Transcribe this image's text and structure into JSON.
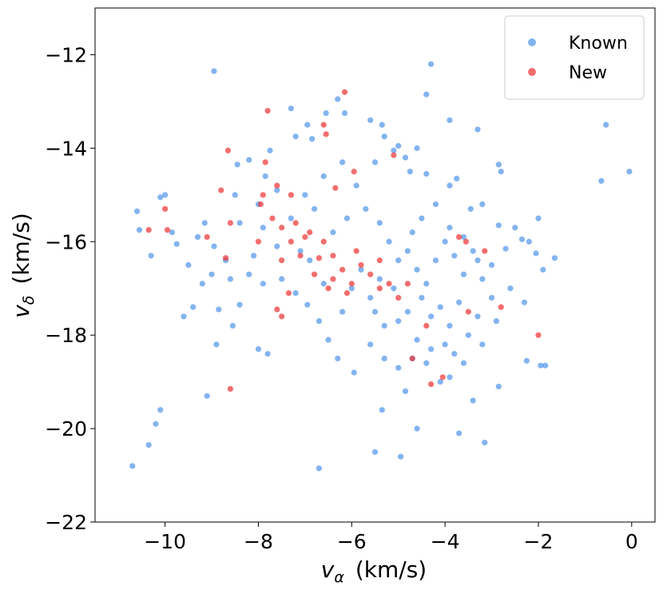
{
  "chart_data": {
    "type": "scatter",
    "xlabel": [
      "v",
      "α",
      "(km/s)"
    ],
    "ylabel": [
      "v",
      "δ",
      "(km/s)"
    ],
    "xlim": [
      -11.5,
      0.5
    ],
    "ylim": [
      -22,
      -11
    ],
    "xticks": [
      {
        "value": -10,
        "label": "−10"
      },
      {
        "value": -8,
        "label": "−8"
      },
      {
        "value": -6,
        "label": "−6"
      },
      {
        "value": -4,
        "label": "−4"
      },
      {
        "value": -2,
        "label": "−2"
      },
      0
    ],
    "yticks": [
      {
        "value": -22,
        "label": "−22"
      },
      {
        "value": -20,
        "label": "−20"
      },
      {
        "value": -18,
        "label": "−18"
      },
      {
        "value": -16,
        "label": "−16"
      },
      {
        "value": -14,
        "label": "−14"
      },
      {
        "value": -12,
        "label": "−12"
      }
    ],
    "grid": false,
    "legend": "upper right",
    "series": [
      {
        "name": "Known",
        "color": "#4f94ea",
        "x": [
          -8.95,
          -4.3,
          -0.55,
          -0.05,
          -0.65,
          -10.7,
          -6.7,
          -10.35,
          -10.2,
          -10.1,
          -9.1,
          -5.5,
          -4.95,
          -3.15,
          -3.7,
          -4.6,
          -5.35,
          -2.85,
          -1.95,
          -1.85,
          -2.25,
          -2.3,
          -1.65,
          -1.9,
          -4.4,
          -3.9,
          -3.3,
          -2.85,
          -2.8,
          -10.6,
          -10.55,
          -10.0,
          -10.1,
          -9.85,
          -9.75,
          -10.3,
          -9.5,
          -9.3,
          -9.15,
          -8.95,
          -9.4,
          -9.6,
          -8.85,
          -9.0,
          -8.7,
          -8.55,
          -8.9,
          -8.4,
          -8.0,
          -7.8,
          -8.2,
          -8.1,
          -7.9,
          -8.4,
          -8.5,
          -8.45,
          -8.2,
          -7.85,
          -7.75,
          -7.3,
          -7.2,
          -6.95,
          -6.85,
          -6.55,
          -6.3,
          -6.15,
          -5.6,
          -5.35,
          -5.3,
          -5.1,
          -5.0,
          -4.85,
          -4.6,
          -4.75,
          -4.4,
          -3.9,
          -3.75,
          -3.45,
          -3.2,
          -2.85,
          -2.5,
          -2.35,
          -2.05,
          -2.7,
          -3.0,
          -3.2,
          -3.0,
          -3.3,
          -3.5,
          -3.6,
          -3.9,
          -3.4,
          -4.1,
          -4.3,
          -4.6,
          -4.7,
          -4.85,
          -5.0,
          -5.3,
          -5.6,
          -5.95,
          -6.3,
          -6.5,
          -6.7,
          -6.95,
          -7.2,
          -7.5,
          -7.6,
          -7.3,
          -7.0,
          -6.6,
          -6.2,
          -5.9,
          -5.7,
          -5.4,
          -5.2,
          -5.0,
          -4.8,
          -4.6,
          -4.4,
          -4.2,
          -4.0,
          -3.8,
          -3.6,
          -3.4,
          -4.5,
          -4.3,
          -4.1,
          -3.9,
          -3.7,
          -4.8,
          -5.1,
          -5.4,
          -5.6,
          -5.8,
          -6.0,
          -6.2,
          -5.3,
          -5.0,
          -4.7,
          -4.5,
          -4.2,
          -3.9,
          -3.6,
          -3.3,
          -4.0,
          -3.8,
          -4.4,
          -3.2,
          -2.9,
          -2.6,
          -5.5,
          -6.6,
          -6.9,
          -7.1,
          -7.9,
          -8.0,
          -7.6,
          -6.8,
          -6.4,
          -6.1,
          -5.5,
          -8.6,
          -9.2,
          -2.2,
          -2.0
        ],
        "values": [
          -12.35,
          -12.2,
          -13.5,
          -14.5,
          -14.7,
          -20.8,
          -20.85,
          -20.35,
          -19.9,
          -19.6,
          -19.3,
          -20.5,
          -20.6,
          -20.3,
          -20.1,
          -20.0,
          -19.6,
          -19.1,
          -18.65,
          -18.65,
          -18.55,
          -17.3,
          -16.35,
          -16.6,
          -12.85,
          -13.4,
          -13.6,
          -14.35,
          -14.5,
          -15.35,
          -15.75,
          -15.0,
          -15.05,
          -15.8,
          -16.05,
          -16.3,
          -16.5,
          -15.9,
          -15.6,
          -16.1,
          -17.4,
          -17.6,
          -17.45,
          -16.7,
          -16.4,
          -17.8,
          -18.2,
          -17.35,
          -18.3,
          -18.4,
          -16.7,
          -16.3,
          -15.7,
          -15.6,
          -15.0,
          -14.35,
          -14.25,
          -14.6,
          -14.05,
          -13.15,
          -13.75,
          -13.5,
          -13.8,
          -13.25,
          -12.95,
          -13.25,
          -13.4,
          -13.5,
          -13.75,
          -14.05,
          -13.95,
          -14.2,
          -14.0,
          -14.5,
          -14.55,
          -14.8,
          -14.65,
          -15.3,
          -15.2,
          -15.65,
          -15.7,
          -15.95,
          -16.25,
          -16.15,
          -16.5,
          -16.8,
          -17.2,
          -17.6,
          -18.0,
          -18.6,
          -18.9,
          -19.4,
          -19.0,
          -18.3,
          -18.1,
          -18.5,
          -19.2,
          -18.7,
          -18.5,
          -18.2,
          -18.8,
          -18.5,
          -18.1,
          -17.7,
          -17.35,
          -17.1,
          -16.8,
          -16.1,
          -15.5,
          -15.0,
          -14.6,
          -14.3,
          -14.8,
          -15.3,
          -15.6,
          -16.0,
          -16.4,
          -16.2,
          -16.6,
          -16.9,
          -16.4,
          -16.0,
          -16.3,
          -16.7,
          -16.2,
          -17.2,
          -17.6,
          -17.4,
          -17.8,
          -17.3,
          -17.5,
          -17.0,
          -16.8,
          -17.2,
          -16.6,
          -17.0,
          -17.5,
          -17.8,
          -17.7,
          -15.8,
          -15.5,
          -15.2,
          -15.7,
          -15.9,
          -16.4,
          -18.2,
          -18.4,
          -18.6,
          -18.2,
          -17.7,
          -17.0,
          -17.5,
          -16.9,
          -16.4,
          -16.2,
          -16.9,
          -15.2,
          -14.9,
          -15.3,
          -15.8,
          -15.5,
          -14.3,
          -16.8,
          -16.9,
          -16.0,
          -15.5
        ]
      },
      {
        "name": "New",
        "color": "#f03030",
        "x": [
          -6.15,
          -7.8,
          -6.6,
          -6.55,
          -8.65,
          -7.85,
          -5.1,
          -5.95,
          -6.35,
          -8.8,
          -7.6,
          -7.3,
          -7.95,
          -7.7,
          -7.5,
          -7.2,
          -7.0,
          -7.3,
          -7.1,
          -6.9,
          -6.6,
          -6.4,
          -6.2,
          -6.0,
          -5.8,
          -5.6,
          -5.4,
          -5.2,
          -6.5,
          -6.8,
          -7.5,
          -8.0,
          -7.9,
          -10.0,
          -10.35,
          -9.95,
          -9.1,
          -8.7,
          -8.6,
          -8.6,
          -7.6,
          -6.1,
          -6.4,
          -5.0,
          -4.8,
          -4.4,
          -4.3,
          -4.05,
          -3.5,
          -2.0,
          -2.8,
          -3.15,
          -3.55,
          -3.7,
          -4.7,
          -5.4,
          -6.7,
          -7.35,
          -7.5,
          -5.9
        ],
        "values": [
          -12.8,
          -13.2,
          -13.5,
          -13.7,
          -14.05,
          -14.3,
          -14.15,
          -14.5,
          -14.85,
          -14.9,
          -14.8,
          -15.0,
          -15.2,
          -15.5,
          -15.7,
          -15.6,
          -15.9,
          -16.0,
          -16.3,
          -15.8,
          -16.0,
          -16.3,
          -16.6,
          -16.9,
          -16.5,
          -16.7,
          -16.4,
          -16.9,
          -17.0,
          -16.7,
          -16.4,
          -16.0,
          -15.0,
          -15.3,
          -15.75,
          -15.75,
          -15.9,
          -16.35,
          -19.15,
          -15.6,
          -17.45,
          -17.1,
          -16.8,
          -17.2,
          -16.9,
          -17.8,
          -19.05,
          -18.9,
          -17.5,
          -18.0,
          -17.4,
          -16.2,
          -16.0,
          -15.9,
          -18.5,
          -17.0,
          -16.35,
          -17.1,
          -17.6,
          -16.2
        ]
      }
    ]
  }
}
